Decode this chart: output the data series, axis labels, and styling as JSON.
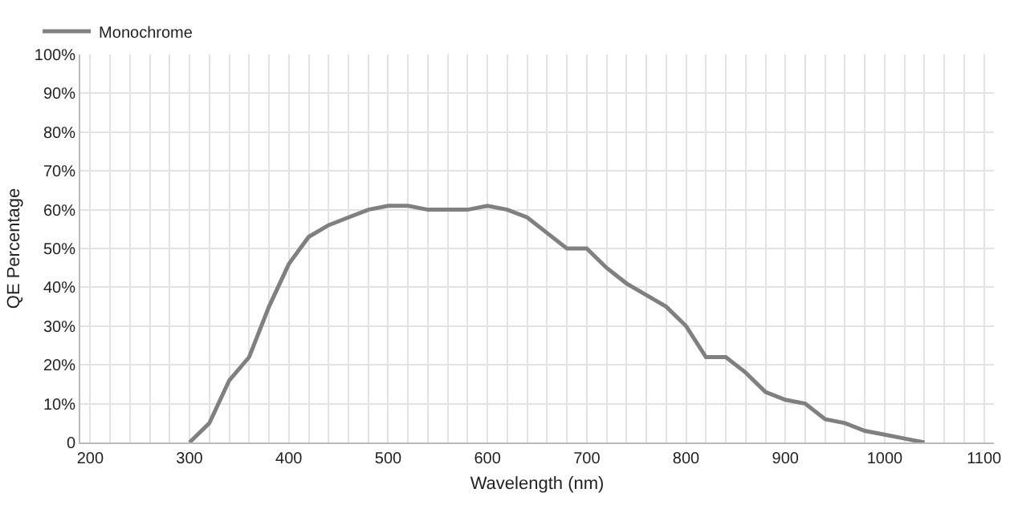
{
  "chart_data": {
    "type": "line",
    "xlabel": "Wavelength (nm)",
    "ylabel": "QE Percentage",
    "series": [
      {
        "name": "Monochrome",
        "color": "#808080",
        "x": [
          300,
          320,
          340,
          360,
          380,
          400,
          420,
          440,
          460,
          480,
          500,
          520,
          540,
          560,
          580,
          600,
          620,
          640,
          660,
          680,
          700,
          720,
          740,
          760,
          780,
          800,
          820,
          840,
          860,
          880,
          900,
          920,
          940,
          960,
          980,
          1000,
          1020,
          1040
        ],
        "values": [
          0,
          5,
          16,
          22,
          35,
          46,
          53,
          56,
          58,
          60,
          61,
          61,
          60,
          60,
          60,
          61,
          60,
          58,
          54,
          50,
          50,
          45,
          41,
          38,
          35,
          30,
          22,
          22,
          18,
          13,
          11,
          10,
          6,
          5,
          3,
          2,
          1,
          0
        ]
      }
    ],
    "xlim": [
      190,
      1110
    ],
    "ylim": [
      0,
      100
    ],
    "xticks": [
      200,
      {
        "value": 220,
        "label": null
      },
      {
        "value": 240,
        "label": null
      },
      {
        "value": 260,
        "label": null
      },
      {
        "value": 280,
        "label": null
      },
      300,
      {
        "value": 320,
        "label": null
      },
      {
        "value": 340,
        "label": null
      },
      {
        "value": 360,
        "label": null
      },
      {
        "value": 380,
        "label": null
      },
      400,
      {
        "value": 420,
        "label": null
      },
      {
        "value": 440,
        "label": null
      },
      {
        "value": 460,
        "label": null
      },
      {
        "value": 480,
        "label": null
      },
      500,
      {
        "value": 520,
        "label": null
      },
      {
        "value": 540,
        "label": null
      },
      {
        "value": 560,
        "label": null
      },
      {
        "value": 580,
        "label": null
      },
      600,
      {
        "value": 620,
        "label": null
      },
      {
        "value": 640,
        "label": null
      },
      {
        "value": 660,
        "label": null
      },
      {
        "value": 680,
        "label": null
      },
      700,
      {
        "value": 720,
        "label": null
      },
      {
        "value": 740,
        "label": null
      },
      {
        "value": 760,
        "label": null
      },
      {
        "value": 780,
        "label": null
      },
      800,
      {
        "value": 820,
        "label": null
      },
      {
        "value": 840,
        "label": null
      },
      {
        "value": 860,
        "label": null
      },
      {
        "value": 880,
        "label": null
      },
      900,
      {
        "value": 920,
        "label": null
      },
      {
        "value": 940,
        "label": null
      },
      {
        "value": 960,
        "label": null
      },
      {
        "value": 980,
        "label": null
      },
      1000,
      {
        "value": 1020,
        "label": null
      },
      {
        "value": 1040,
        "label": null
      },
      {
        "value": 1060,
        "label": null
      },
      {
        "value": 1080,
        "label": null
      },
      1100
    ],
    "yticks": [
      {
        "value": 0,
        "label": "0"
      },
      {
        "value": 10,
        "label": "10%"
      },
      {
        "value": 20,
        "label": "20%"
      },
      {
        "value": 30,
        "label": "30%"
      },
      {
        "value": 40,
        "label": "40%"
      },
      {
        "value": 50,
        "label": "50%"
      },
      {
        "value": 60,
        "label": "60%"
      },
      {
        "value": 70,
        "label": "70%"
      },
      {
        "value": 80,
        "label": "80%"
      },
      {
        "value": 90,
        "label": "90%"
      },
      {
        "value": 100,
        "label": "100%"
      }
    ],
    "grid": true,
    "legend": "top left",
    "marker": "none",
    "line_style": "solid"
  }
}
